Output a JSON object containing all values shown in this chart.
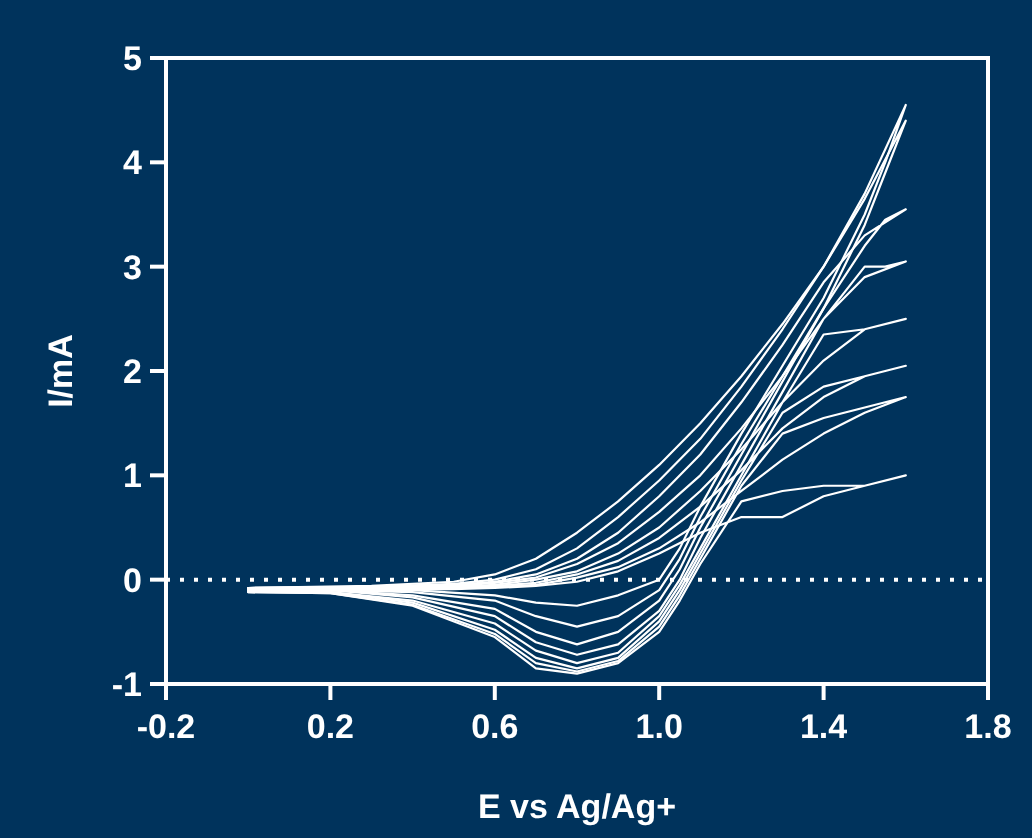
{
  "chart_data": {
    "type": "line",
    "xlabel": "E vs Ag/Ag+",
    "ylabel": "I/mA",
    "xlim": [
      -0.2,
      1.8
    ],
    "ylim": [
      -1,
      5
    ],
    "xticks": [
      -0.2,
      0.2,
      0.6,
      {
        "value": 1,
        "label": "1.0"
      },
      1.4,
      1.8
    ],
    "yticks": [
      -1,
      0,
      1,
      2,
      3,
      4,
      5
    ],
    "grid": false,
    "marker": "none",
    "line_style": "solid",
    "ref_lines": [
      {
        "axis": "y",
        "value": 0,
        "color": "#ffffff",
        "line_style": "dotted"
      }
    ],
    "series": [
      {
        "color": "#ffffff",
        "x": [
          0,
          0.3,
          0.5,
          0.6,
          0.7,
          0.8,
          0.9,
          1.0,
          1.1,
          1.2,
          1.3,
          1.4,
          1.5,
          1.6,
          1.55,
          1.5,
          1.4,
          1.3,
          1.2,
          1.1,
          1.05,
          1.0,
          0.9,
          0.8,
          0.7,
          0.6,
          0.4,
          0.2,
          0
        ],
        "values": [
          -0.08,
          -0.06,
          -0.02,
          0.05,
          0.2,
          0.45,
          0.75,
          1.1,
          1.5,
          1.95,
          2.45,
          3.0,
          3.7,
          4.55,
          4.0,
          3.5,
          2.7,
          2.05,
          1.4,
          0.7,
          0.3,
          0.0,
          -0.15,
          -0.25,
          -0.22,
          -0.15,
          -0.1,
          -0.1,
          -0.11
        ]
      },
      {
        "color": "#ffffff",
        "x": [
          0,
          0.3,
          0.5,
          0.6,
          0.7,
          0.8,
          0.9,
          1.0,
          1.1,
          1.2,
          1.3,
          1.4,
          1.5,
          1.6,
          1.55,
          1.5,
          1.4,
          1.3,
          1.2,
          1.1,
          1.05,
          1.0,
          0.9,
          0.8,
          0.7,
          0.6,
          0.4,
          0.2,
          0
        ],
        "values": [
          -0.08,
          -0.07,
          -0.04,
          0.0,
          0.1,
          0.3,
          0.6,
          0.95,
          1.35,
          1.85,
          2.4,
          3.0,
          3.65,
          4.4,
          3.9,
          3.4,
          2.6,
          1.95,
          1.3,
          0.6,
          0.2,
          -0.1,
          -0.35,
          -0.45,
          -0.35,
          -0.2,
          -0.12,
          -0.1,
          -0.11
        ]
      },
      {
        "color": "#ffffff",
        "x": [
          0,
          0.3,
          0.5,
          0.6,
          0.7,
          0.8,
          0.9,
          1.0,
          1.1,
          1.2,
          1.3,
          1.4,
          1.5,
          1.6,
          1.55,
          1.5,
          1.4,
          1.3,
          1.2,
          1.1,
          1.05,
          1.0,
          0.9,
          0.8,
          0.7,
          0.6,
          0.4,
          0.2,
          0
        ],
        "values": [
          -0.08,
          -0.07,
          -0.05,
          -0.02,
          0.05,
          0.2,
          0.45,
          0.8,
          1.2,
          1.7,
          2.25,
          2.85,
          3.3,
          3.55,
          3.45,
          3.2,
          2.6,
          1.9,
          1.2,
          0.5,
          0.1,
          -0.2,
          -0.5,
          -0.62,
          -0.5,
          -0.28,
          -0.15,
          -0.1,
          -0.11
        ]
      },
      {
        "color": "#ffffff",
        "x": [
          0,
          0.3,
          0.5,
          0.6,
          0.7,
          0.8,
          0.9,
          1.0,
          1.1,
          1.2,
          1.3,
          1.4,
          1.5,
          1.6,
          1.55,
          1.5,
          1.4,
          1.3,
          1.2,
          1.1,
          1.05,
          1.0,
          0.9,
          0.8,
          0.7,
          0.6,
          0.4,
          0.2,
          0
        ],
        "values": [
          -0.08,
          -0.08,
          -0.06,
          -0.03,
          0.02,
          0.15,
          0.35,
          0.65,
          1.0,
          1.45,
          1.95,
          2.5,
          2.9,
          3.05,
          3.0,
          3.0,
          2.5,
          1.8,
          1.1,
          0.4,
          0.0,
          -0.3,
          -0.62,
          -0.72,
          -0.6,
          -0.35,
          -0.17,
          -0.1,
          -0.11
        ]
      },
      {
        "color": "#ffffff",
        "x": [
          0,
          0.3,
          0.5,
          0.6,
          0.7,
          0.8,
          0.9,
          1.0,
          1.1,
          1.2,
          1.3,
          1.4,
          1.5,
          1.6,
          1.55,
          1.5,
          1.4,
          1.3,
          1.2,
          1.1,
          1.05,
          1.0,
          0.9,
          0.8,
          0.7,
          0.6,
          0.4,
          0.2,
          0
        ],
        "values": [
          -0.09,
          -0.08,
          -0.07,
          -0.05,
          0.0,
          0.08,
          0.25,
          0.5,
          0.85,
          1.25,
          1.7,
          2.1,
          2.4,
          2.5,
          2.45,
          2.4,
          2.35,
          1.7,
          1.0,
          0.3,
          -0.05,
          -0.35,
          -0.7,
          -0.8,
          -0.68,
          -0.42,
          -0.2,
          -0.12,
          -0.11
        ]
      },
      {
        "color": "#ffffff",
        "x": [
          0,
          0.3,
          0.5,
          0.6,
          0.7,
          0.8,
          0.9,
          1.0,
          1.1,
          1.2,
          1.3,
          1.4,
          1.5,
          1.6,
          1.55,
          1.5,
          1.4,
          1.3,
          1.2,
          1.1,
          1.05,
          1.0,
          0.9,
          0.8,
          0.7,
          0.6,
          0.4,
          0.2,
          0
        ],
        "values": [
          -0.09,
          -0.08,
          -0.07,
          -0.06,
          -0.03,
          0.05,
          0.18,
          0.4,
          0.7,
          1.05,
          1.45,
          1.75,
          1.95,
          2.05,
          2.0,
          1.95,
          1.85,
          1.6,
          0.95,
          0.25,
          -0.1,
          -0.4,
          -0.75,
          -0.85,
          -0.75,
          -0.48,
          -0.22,
          -0.12,
          -0.11
        ]
      },
      {
        "color": "#ffffff",
        "x": [
          0,
          0.3,
          0.5,
          0.6,
          0.7,
          0.8,
          0.9,
          1.0,
          1.1,
          1.2,
          1.3,
          1.4,
          1.5,
          1.6,
          1.55,
          1.5,
          1.4,
          1.3,
          1.2,
          1.1,
          1.05,
          1.0,
          0.9,
          0.8,
          0.7,
          0.6,
          0.4,
          0.2,
          0
        ],
        "values": [
          -0.09,
          -0.09,
          -0.08,
          -0.07,
          -0.05,
          0.02,
          0.12,
          0.3,
          0.55,
          0.85,
          1.15,
          1.4,
          1.6,
          1.75,
          1.7,
          1.65,
          1.55,
          1.4,
          0.9,
          0.2,
          -0.15,
          -0.45,
          -0.78,
          -0.88,
          -0.8,
          -0.52,
          -0.24,
          -0.13,
          -0.12
        ]
      },
      {
        "color": "#ffffff",
        "x": [
          0,
          0.3,
          0.5,
          0.6,
          0.7,
          0.8,
          0.9,
          1.0,
          1.1,
          1.2,
          1.3,
          1.4,
          1.5,
          1.6,
          1.55,
          1.5,
          1.4,
          1.3,
          1.2,
          1.1,
          1.05,
          1.0,
          0.9,
          0.8,
          0.7,
          0.6,
          0.4,
          0.2,
          0
        ],
        "values": [
          -0.09,
          -0.1,
          -0.09,
          -0.08,
          -0.06,
          -0.02,
          0.08,
          0.25,
          0.45,
          0.6,
          0.6,
          0.8,
          0.9,
          1.0,
          0.95,
          0.9,
          0.9,
          0.85,
          0.75,
          0.15,
          -0.2,
          -0.5,
          -0.8,
          -0.9,
          -0.85,
          -0.55,
          -0.25,
          -0.13,
          -0.12
        ]
      }
    ]
  }
}
